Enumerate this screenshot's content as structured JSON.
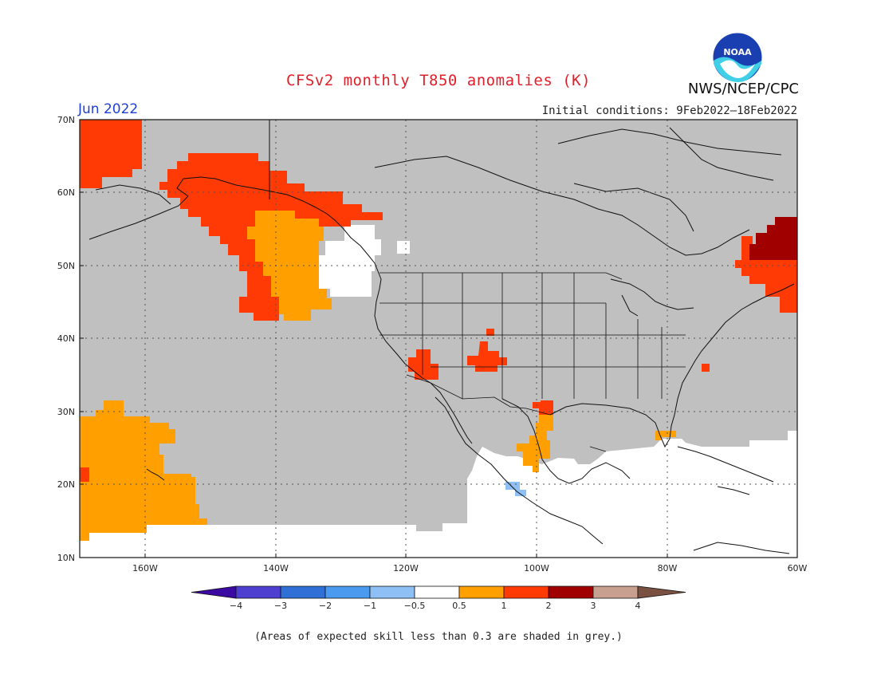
{
  "title": "CFSv2 monthly T850 anomalies (K)",
  "valid_month": "Jun 2022",
  "initial_conditions": "Initial conditions:  9Feb2022–18Feb2022",
  "organization": "NWS/NCEP/CPC",
  "logo_text": "NOAA",
  "note": "(Areas of expected skill less than 0.3 are shaded in grey.)",
  "lat_labels": [
    "70N",
    "60N",
    "50N",
    "40N",
    "30N",
    "20N",
    "10N"
  ],
  "lon_labels": [
    "160W",
    "140W",
    "120W",
    "100W",
    "80W",
    "60W"
  ],
  "colorbar": {
    "ticks": [
      "−4",
      "−3",
      "−2",
      "−1",
      "−0.5",
      "0.5",
      "1",
      "2",
      "3",
      "4"
    ],
    "colors": [
      "#3b0aa0",
      "#4e3fd0",
      "#2f6fd6",
      "#4a9af0",
      "#8fc0f5",
      "#ffffff",
      "#ffa000",
      "#ff3a05",
      "#a00000",
      "#c8a090",
      "#7a5040"
    ]
  },
  "colors": {
    "grey_mask": "#c0c0c0",
    "plus_half": "#ffa000",
    "plus_one": "#ff3a05",
    "plus_two": "#a00000",
    "minus_half": "#8fc0f5"
  }
}
